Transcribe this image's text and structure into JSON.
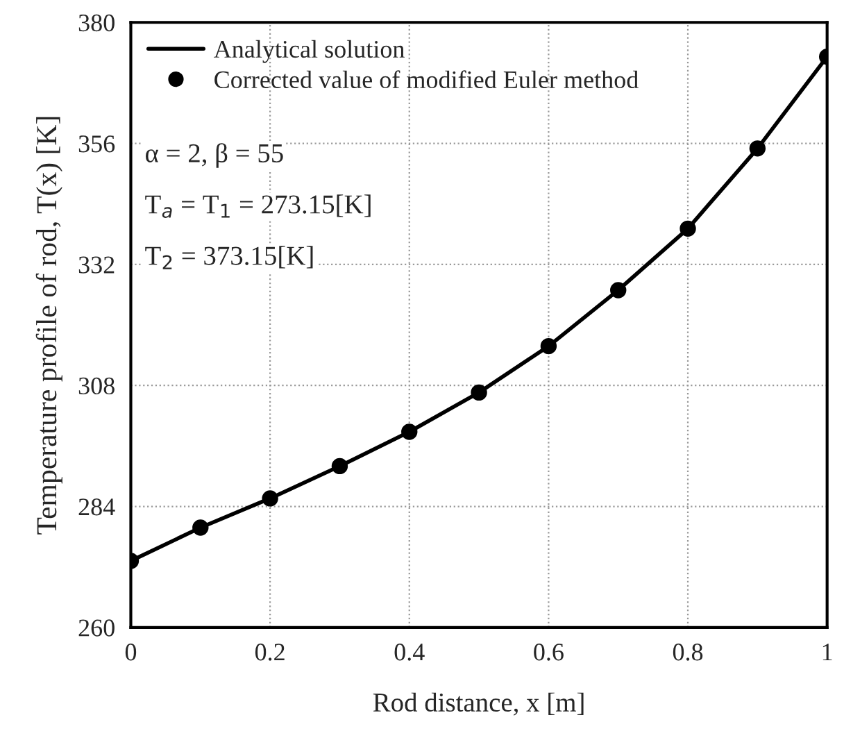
{
  "chart_data": {
    "type": "line",
    "xlabel": "Rod distance, x [m]",
    "ylabel": "Temperature profile of rod, T(x) [K]",
    "x": [
      0,
      0.1,
      0.2,
      0.3,
      0.4,
      0.5,
      0.6,
      0.7,
      0.8,
      0.9,
      1
    ],
    "series": [
      {
        "name": "Analytical solution",
        "color": "#000000",
        "line_style": "solid",
        "values": [
          273.2,
          279.8,
          285.6,
          292.0,
          298.8,
          306.6,
          315.8,
          326.9,
          339.1,
          355.0,
          373.2
        ]
      },
      {
        "name": "Corrected value of modified Euler method",
        "type": "scatter",
        "color": "#000000",
        "marker": "circle",
        "values": [
          273.2,
          279.8,
          285.6,
          292.0,
          298.8,
          306.6,
          315.8,
          326.9,
          339.1,
          355.0,
          373.2
        ]
      }
    ],
    "xlim": [
      0,
      1
    ],
    "ylim": [
      260,
      380
    ],
    "xticks": [
      0,
      {
        "value": 0.2,
        "label": "0.2"
      },
      {
        "value": 0.4,
        "label": "0.4"
      },
      {
        "value": 0.6,
        "label": "0.6"
      },
      {
        "value": 0.8,
        "label": "0.8"
      },
      1
    ],
    "yticks": [
      260,
      284,
      308,
      332,
      356,
      380
    ],
    "grid": true,
    "legend": "top left",
    "annotations": [
      "α = 2, β = 55",
      "T$_{a}$ = T$_{1}$ = 273.15[K]",
      "T$_{2}$ = 373.15[K]"
    ]
  }
}
